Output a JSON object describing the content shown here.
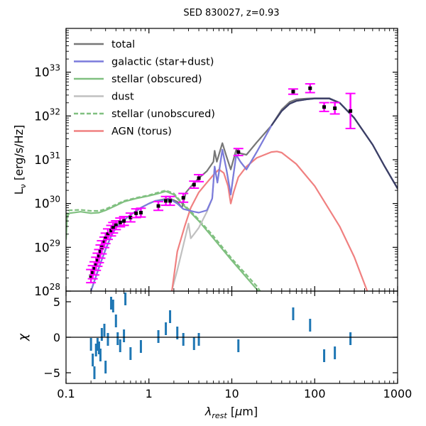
{
  "chart_data": [
    {
      "type": "line",
      "title": "SED 830027, z=0.93",
      "xlabel": "λ_rest [μm]",
      "ylabel": "L_ν [erg/s/Hz]",
      "xscale": "log",
      "yscale": "log",
      "xlim": [
        0.1,
        1000
      ],
      "ylim": [
        1e+28,
        1e+34
      ],
      "x_ticks": [
        0.1,
        1,
        10,
        100,
        1000
      ],
      "x_tick_labels": [
        "0.1",
        "1",
        "10",
        "100",
        "1000"
      ],
      "y_ticks": [
        1e+28,
        1e+29,
        1e+30,
        1e+31,
        1e+32,
        1e+33
      ],
      "y_tick_labels": [
        [
          "10",
          "28"
        ],
        [
          "10",
          "29"
        ],
        [
          "10",
          "30"
        ],
        [
          "10",
          "31"
        ],
        [
          "10",
          "32"
        ],
        [
          "10",
          "33"
        ]
      ],
      "legend_position": "top-left",
      "series": [
        {
          "name": "total",
          "color": "#777777",
          "style": "solid",
          "points": [
            [
              0.2,
              1e+28
            ],
            [
              0.25,
              3.5e+28
            ],
            [
              0.3,
              9e+28
            ],
            [
              0.35,
              1.8e+29
            ],
            [
              0.4,
              2.8e+29
            ],
            [
              0.5,
              4.2e+29
            ],
            [
              0.6,
              5.5e+29
            ],
            [
              0.8,
              8e+29
            ],
            [
              1.0,
              1e+30
            ],
            [
              1.2,
              1.15e+30
            ],
            [
              1.5,
              1.25e+30
            ],
            [
              1.8,
              1.3e+30
            ],
            [
              2.2,
              1.1e+30
            ],
            [
              2.5,
              8e+29
            ],
            [
              2.8,
              1.8e+30
            ],
            [
              3.3,
              2.6e+30
            ],
            [
              4,
              3.8e+30
            ],
            [
              5,
              5.5e+30
            ],
            [
              6,
              9e+30
            ],
            [
              6.2,
              1.6e+31
            ],
            [
              6.6,
              9e+30
            ],
            [
              7.7,
              2.4e+31
            ],
            [
              8.6,
              1.2e+31
            ],
            [
              9.7,
              6e+30
            ],
            [
              11.3,
              1.7e+31
            ],
            [
              12.7,
              1.4e+31
            ],
            [
              15,
              1.3e+31
            ],
            [
              20,
              2.5e+31
            ],
            [
              30,
              6e+31
            ],
            [
              40,
              1.4e+32
            ],
            [
              50,
              2.1e+32
            ],
            [
              60,
              2.4e+32
            ],
            [
              80,
              2.5e+32
            ],
            [
              100,
              2.55e+32
            ],
            [
              150,
              2.55e+32
            ],
            [
              200,
              2e+32
            ],
            [
              300,
              9e+31
            ],
            [
              500,
              2.2e+31
            ],
            [
              700,
              7e+30
            ],
            [
              1000,
              2.2e+30
            ]
          ]
        },
        {
          "name": "galactic (star+dust)",
          "color": "#7b7bdc",
          "style": "solid",
          "points": [
            [
              0.2,
              1e+28
            ],
            [
              0.25,
              3.5e+28
            ],
            [
              0.3,
              9e+28
            ],
            [
              0.35,
              1.8e+29
            ],
            [
              0.4,
              2.8e+29
            ],
            [
              0.5,
              4.2e+29
            ],
            [
              0.6,
              5.5e+29
            ],
            [
              0.8,
              8e+29
            ],
            [
              1.0,
              1e+30
            ],
            [
              1.2,
              1.15e+30
            ],
            [
              1.5,
              1.2e+30
            ],
            [
              1.8,
              1.25e+30
            ],
            [
              2.2,
              1e+30
            ],
            [
              2.6,
              7.5e+29
            ],
            [
              3.0,
              7e+29
            ],
            [
              3.5,
              6.5e+29
            ],
            [
              4,
              6.2e+29
            ],
            [
              5,
              7e+29
            ],
            [
              5.8,
              1.3e+30
            ],
            [
              6.2,
              7e+30
            ],
            [
              6.7,
              3e+30
            ],
            [
              7.7,
              1.7e+31
            ],
            [
              8.6,
              6e+30
            ],
            [
              9.7,
              1.6e+30
            ],
            [
              11.3,
              1.3e+31
            ],
            [
              12.7,
              9e+30
            ],
            [
              15,
              6e+30
            ],
            [
              20,
              1.5e+31
            ],
            [
              30,
              6e+31
            ],
            [
              40,
              1.3e+32
            ],
            [
              50,
              1.9e+32
            ],
            [
              60,
              2.2e+32
            ],
            [
              80,
              2.4e+32
            ],
            [
              100,
              2.5e+32
            ],
            [
              150,
              2.5e+32
            ],
            [
              200,
              2e+32
            ],
            [
              300,
              9e+31
            ],
            [
              500,
              2.2e+31
            ],
            [
              700,
              7e+30
            ],
            [
              1000,
              2.2e+30
            ]
          ]
        },
        {
          "name": "stellar (obscured)",
          "color": "#80c080",
          "style": "solid",
          "points": [
            [
              0.1,
              1.5e+29
            ],
            [
              0.103,
              5e+29
            ],
            [
              0.11,
              6e+29
            ],
            [
              0.15,
              6.5e+29
            ],
            [
              0.2,
              6e+29
            ],
            [
              0.25,
              6.2e+29
            ],
            [
              0.3,
              7e+29
            ],
            [
              0.4,
              9e+29
            ],
            [
              0.5,
              1.1e+30
            ],
            [
              0.7,
              1.3e+30
            ],
            [
              1.0,
              1.5e+30
            ],
            [
              1.3,
              1.7e+30
            ],
            [
              1.6,
              1.9e+30
            ],
            [
              2.0,
              1.6e+30
            ],
            [
              2.5,
              1e+30
            ],
            [
              3,
              7e+29
            ],
            [
              4,
              4e+29
            ],
            [
              6,
              1.6e+29
            ],
            [
              10,
              5e+28
            ],
            [
              20,
              1.1e+28
            ],
            [
              25,
              6e+27
            ]
          ]
        },
        {
          "name": "dust",
          "color": "#c0c0c0",
          "style": "solid",
          "points": [
            [
              1.7,
              5e+27
            ],
            [
              2.2,
              3e+28
            ],
            [
              2.8,
              2e+29
            ],
            [
              3.0,
              3.5e+29
            ],
            [
              3.2,
              1.6e+29
            ],
            [
              3.5,
              2e+29
            ],
            [
              4,
              2.8e+29
            ],
            [
              5,
              6.5e+29
            ],
            [
              5.8,
              1.3e+30
            ],
            [
              6.2,
              7e+30
            ],
            [
              6.7,
              3e+30
            ],
            [
              7.7,
              1.7e+31
            ],
            [
              8.6,
              6e+30
            ],
            [
              9.7,
              1.6e+30
            ],
            [
              11.3,
              1.3e+31
            ],
            [
              12.7,
              9e+30
            ],
            [
              15,
              6e+30
            ],
            [
              20,
              1.5e+31
            ],
            [
              30,
              6e+31
            ],
            [
              40,
              1.3e+32
            ],
            [
              50,
              1.9e+32
            ],
            [
              60,
              2.2e+32
            ],
            [
              80,
              2.4e+32
            ],
            [
              100,
              2.5e+32
            ],
            [
              150,
              2.5e+32
            ],
            [
              200,
              2e+32
            ],
            [
              300,
              9e+31
            ],
            [
              500,
              2.2e+31
            ],
            [
              700,
              7e+30
            ],
            [
              1000,
              2.2e+30
            ]
          ]
        },
        {
          "name": "stellar (unobscured)",
          "color": "#80c080",
          "style": "dashed",
          "points": [
            [
              0.1,
              1.8e+29
            ],
            [
              0.103,
              6e+29
            ],
            [
              0.11,
              7e+29
            ],
            [
              0.15,
              7.2e+29
            ],
            [
              0.2,
              6.8e+29
            ],
            [
              0.25,
              6.8e+29
            ],
            [
              0.3,
              7.5e+29
            ],
            [
              0.4,
              9.5e+29
            ],
            [
              0.5,
              1.15e+30
            ],
            [
              0.7,
              1.35e+30
            ],
            [
              1.0,
              1.55e+30
            ],
            [
              1.3,
              1.8e+30
            ],
            [
              1.6,
              2e+30
            ],
            [
              2.0,
              1.7e+30
            ],
            [
              2.5,
              1.05e+30
            ],
            [
              3,
              7.5e+29
            ],
            [
              4,
              4.3e+29
            ],
            [
              6,
              1.8e+29
            ],
            [
              10,
              5.5e+28
            ],
            [
              20,
              1.3e+28
            ],
            [
              25,
              7e+27
            ]
          ]
        },
        {
          "name": "AGN (torus)",
          "color": "#f08080",
          "style": "solid",
          "points": [
            [
              1.8,
              5e+27
            ],
            [
              2.2,
              8e+28
            ],
            [
              2.7,
              3e+29
            ],
            [
              3.2,
              8e+29
            ],
            [
              4,
              1.8e+30
            ],
            [
              5,
              3e+30
            ],
            [
              6,
              4.5e+30
            ],
            [
              7,
              6e+30
            ],
            [
              8,
              5e+30
            ],
            [
              9,
              2.5e+30
            ],
            [
              9.7,
              1e+30
            ],
            [
              10.5,
              1.8e+30
            ],
            [
              12,
              4e+30
            ],
            [
              15,
              7e+30
            ],
            [
              20,
              1.1e+31
            ],
            [
              30,
              1.5e+31
            ],
            [
              35,
              1.55e+31
            ],
            [
              40,
              1.45e+31
            ],
            [
              60,
              8e+30
            ],
            [
              100,
              2.5e+30
            ],
            [
              200,
              3e+29
            ],
            [
              300,
              6e+28
            ],
            [
              450,
              8e+27
            ]
          ]
        }
      ],
      "observed": [
        {
          "x": 0.2,
          "y": 2.2e+28,
          "err": 0.15
        },
        {
          "x": 0.21,
          "y": 2.7e+28,
          "err": 0.15
        },
        {
          "x": 0.22,
          "y": 3.3e+28,
          "err": 0.15
        },
        {
          "x": 0.23,
          "y": 4.2e+28,
          "err": 0.15
        },
        {
          "x": 0.24,
          "y": 5.2e+28,
          "err": 0.15
        },
        {
          "x": 0.25,
          "y": 6.3e+28,
          "err": 0.15
        },
        {
          "x": 0.26,
          "y": 8e+28,
          "err": 0.15
        },
        {
          "x": 0.27,
          "y": 1e+29,
          "err": 0.15
        },
        {
          "x": 0.29,
          "y": 1.3e+29,
          "err": 0.12
        },
        {
          "x": 0.3,
          "y": 1.6e+29,
          "err": 0.12
        },
        {
          "x": 0.32,
          "y": 2e+29,
          "err": 0.12
        },
        {
          "x": 0.35,
          "y": 2.4e+29,
          "err": 0.12
        },
        {
          "x": 0.37,
          "y": 2.8e+29,
          "err": 0.12
        },
        {
          "x": 0.4,
          "y": 3.2e+29,
          "err": 0.1
        },
        {
          "x": 0.45,
          "y": 3.7e+29,
          "err": 0.1
        },
        {
          "x": 0.5,
          "y": 4e+29,
          "err": 0.1
        },
        {
          "x": 0.6,
          "y": 4.8e+29,
          "err": 0.1
        },
        {
          "x": 0.7,
          "y": 6e+29,
          "err": 0.1
        },
        {
          "x": 0.8,
          "y": 6.2e+29,
          "err": 0.1
        },
        {
          "x": 1.3,
          "y": 8.8e+29,
          "err": 0.1
        },
        {
          "x": 1.6,
          "y": 1.15e+30,
          "err": 0.1
        },
        {
          "x": 1.8,
          "y": 1.15e+30,
          "err": 0.1
        },
        {
          "x": 2.6,
          "y": 1.35e+30,
          "err": 0.1
        },
        {
          "x": 3.5,
          "y": 2.7e+30,
          "err": 0.08
        },
        {
          "x": 4.0,
          "y": 3.8e+30,
          "err": 0.08
        },
        {
          "x": 12,
          "y": 1.5e+31,
          "err": 0.08
        },
        {
          "x": 55,
          "y": 3.6e+32,
          "err": 0.06
        },
        {
          "x": 88,
          "y": 4.3e+32,
          "err": 0.1
        },
        {
          "x": 130,
          "y": 1.6e+32,
          "err": 0.1
        },
        {
          "x": 175,
          "y": 1.5e+32,
          "err": 0.13
        },
        {
          "x": 270,
          "y": 1.3e+32,
          "err": 0.4
        }
      ]
    },
    {
      "type": "scatter",
      "xlabel": "λ_rest [μm]",
      "ylabel": "χ",
      "xscale": "log",
      "xlim": [
        0.1,
        1000
      ],
      "ylim": [
        -6.5,
        6.5
      ],
      "y_ticks": [
        -5,
        0,
        5
      ],
      "y_tick_labels": [
        "−5",
        "0",
        "5"
      ],
      "marker_color": "#1f77b4",
      "residuals": [
        {
          "x": 0.2,
          "chi": -1.0
        },
        {
          "x": 0.21,
          "chi": -3.2
        },
        {
          "x": 0.22,
          "chi": -5.0
        },
        {
          "x": 0.23,
          "chi": -1.8
        },
        {
          "x": 0.24,
          "chi": -1.0
        },
        {
          "x": 0.25,
          "chi": -1.5
        },
        {
          "x": 0.26,
          "chi": -2.5
        },
        {
          "x": 0.27,
          "chi": 0.4
        },
        {
          "x": 0.29,
          "chi": 1.0
        },
        {
          "x": 0.3,
          "chi": -4.2
        },
        {
          "x": 0.32,
          "chi": -0.3
        },
        {
          "x": 0.35,
          "chi": 4.8
        },
        {
          "x": 0.37,
          "chi": 4.4
        },
        {
          "x": 0.4,
          "chi": 2.3
        },
        {
          "x": 0.42,
          "chi": -0.2
        },
        {
          "x": 0.45,
          "chi": -1.2
        },
        {
          "x": 0.5,
          "chi": 0.2
        },
        {
          "x": 0.52,
          "chi": 5.4
        },
        {
          "x": 0.6,
          "chi": -2.3
        },
        {
          "x": 0.8,
          "chi": -1.3
        },
        {
          "x": 1.3,
          "chi": 0.1
        },
        {
          "x": 1.6,
          "chi": 1.2
        },
        {
          "x": 1.8,
          "chi": 2.9
        },
        {
          "x": 2.2,
          "chi": 0.6
        },
        {
          "x": 2.6,
          "chi": -0.3
        },
        {
          "x": 3.5,
          "chi": -0.9
        },
        {
          "x": 4.0,
          "chi": -0.3
        },
        {
          "x": 12,
          "chi": -1.2
        },
        {
          "x": 55,
          "chi": 3.3
        },
        {
          "x": 88,
          "chi": 1.7
        },
        {
          "x": 130,
          "chi": -2.6
        },
        {
          "x": 175,
          "chi": -2.2
        },
        {
          "x": 270,
          "chi": -0.2
        }
      ]
    }
  ]
}
